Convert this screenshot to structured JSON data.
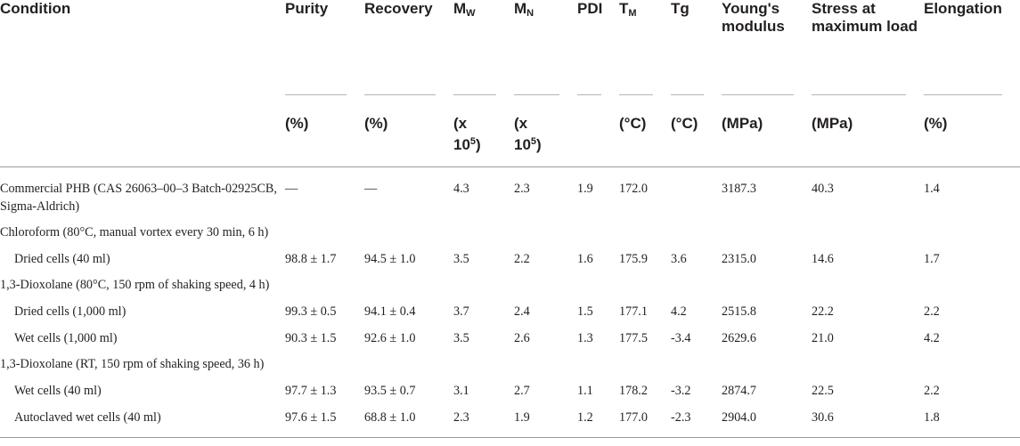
{
  "table": {
    "headers": {
      "condition": "Condition",
      "purity": "Purity",
      "recovery": "Recovery",
      "mw_main": "M",
      "mw_sub": "W",
      "mn_main": "M",
      "mn_sub": "N",
      "pdi": "PDI",
      "tm_main": "T",
      "tm_sub": "M",
      "tg": "Tg",
      "youngs": "Young's modulus",
      "stress": "Stress at maximum load",
      "elongation": "Elongation"
    },
    "units": {
      "purity": "(%)",
      "recovery": "(%)",
      "mw_a": "(x",
      "mw_b": "10",
      "mw_sup": "5",
      "mw_c": ")",
      "mn_a": "(x",
      "mn_b": "10",
      "mn_sup": "5",
      "mn_c": ")",
      "pdi": "",
      "tm": "(°C)",
      "tg": "(°C)",
      "youngs": "(MPa)",
      "stress": "(MPa)",
      "elongation": "(%)"
    },
    "rows": [
      {
        "condition": "Commercial PHB (CAS 26063–00–3 Batch-02925CB, Sigma-Aldrich)",
        "purity": "—",
        "recovery": "—",
        "mw": "4.3",
        "mn": "2.3",
        "pdi": "1.9",
        "tm": "172.0",
        "tg": "",
        "youngs": "3187.3",
        "stress": "40.3",
        "elongation": "1.4"
      },
      {
        "group": "Chloroform (80°C, manual vortex every 30 min, 6 h)"
      },
      {
        "condition": "Dried cells (40 ml)",
        "purity": "98.8 ± 1.7",
        "recovery": "94.5 ± 1.0",
        "mw": "3.5",
        "mn": "2.2",
        "pdi": "1.6",
        "tm": "175.9",
        "tg": "3.6",
        "youngs": "2315.0",
        "stress": "14.6",
        "elongation": "1.7"
      },
      {
        "group": "1,3-Dioxolane (80°C, 150 rpm of shaking speed, 4 h)"
      },
      {
        "condition": "Dried cells (1,000 ml)",
        "purity": "99.3 ± 0.5",
        "recovery": "94.1 ± 0.4",
        "mw": "3.7",
        "mn": "2.4",
        "pdi": "1.5",
        "tm": "177.1",
        "tg": "4.2",
        "youngs": "2515.8",
        "stress": "22.2",
        "elongation": "2.2"
      },
      {
        "condition": "Wet cells (1,000 ml)",
        "purity": "90.3 ± 1.5",
        "recovery": "92.6 ± 1.0",
        "mw": "3.5",
        "mn": "2.6",
        "pdi": "1.3",
        "tm": "177.5",
        "tg": "-3.4",
        "youngs": "2629.6",
        "stress": "21.0",
        "elongation": "4.2"
      },
      {
        "group": "1,3-Dioxolane (RT, 150 rpm of shaking speed, 36 h)"
      },
      {
        "condition": "Wet cells (40 ml)",
        "purity": "97.7 ± 1.3",
        "recovery": "93.5 ± 0.7",
        "mw": "3.1",
        "mn": "2.7",
        "pdi": "1.1",
        "tm": "178.2",
        "tg": "-3.2",
        "youngs": "2874.7",
        "stress": "22.5",
        "elongation": "2.2"
      },
      {
        "condition": "Autoclaved wet cells (40 ml)",
        "purity": "97.6 ± 1.5",
        "recovery": "68.8 ± 1.0",
        "mw": "2.3",
        "mn": "1.9",
        "pdi": "1.2",
        "tm": "177.0",
        "tg": "-2.3",
        "youngs": "2904.0",
        "stress": "30.6",
        "elongation": "1.8"
      }
    ]
  }
}
